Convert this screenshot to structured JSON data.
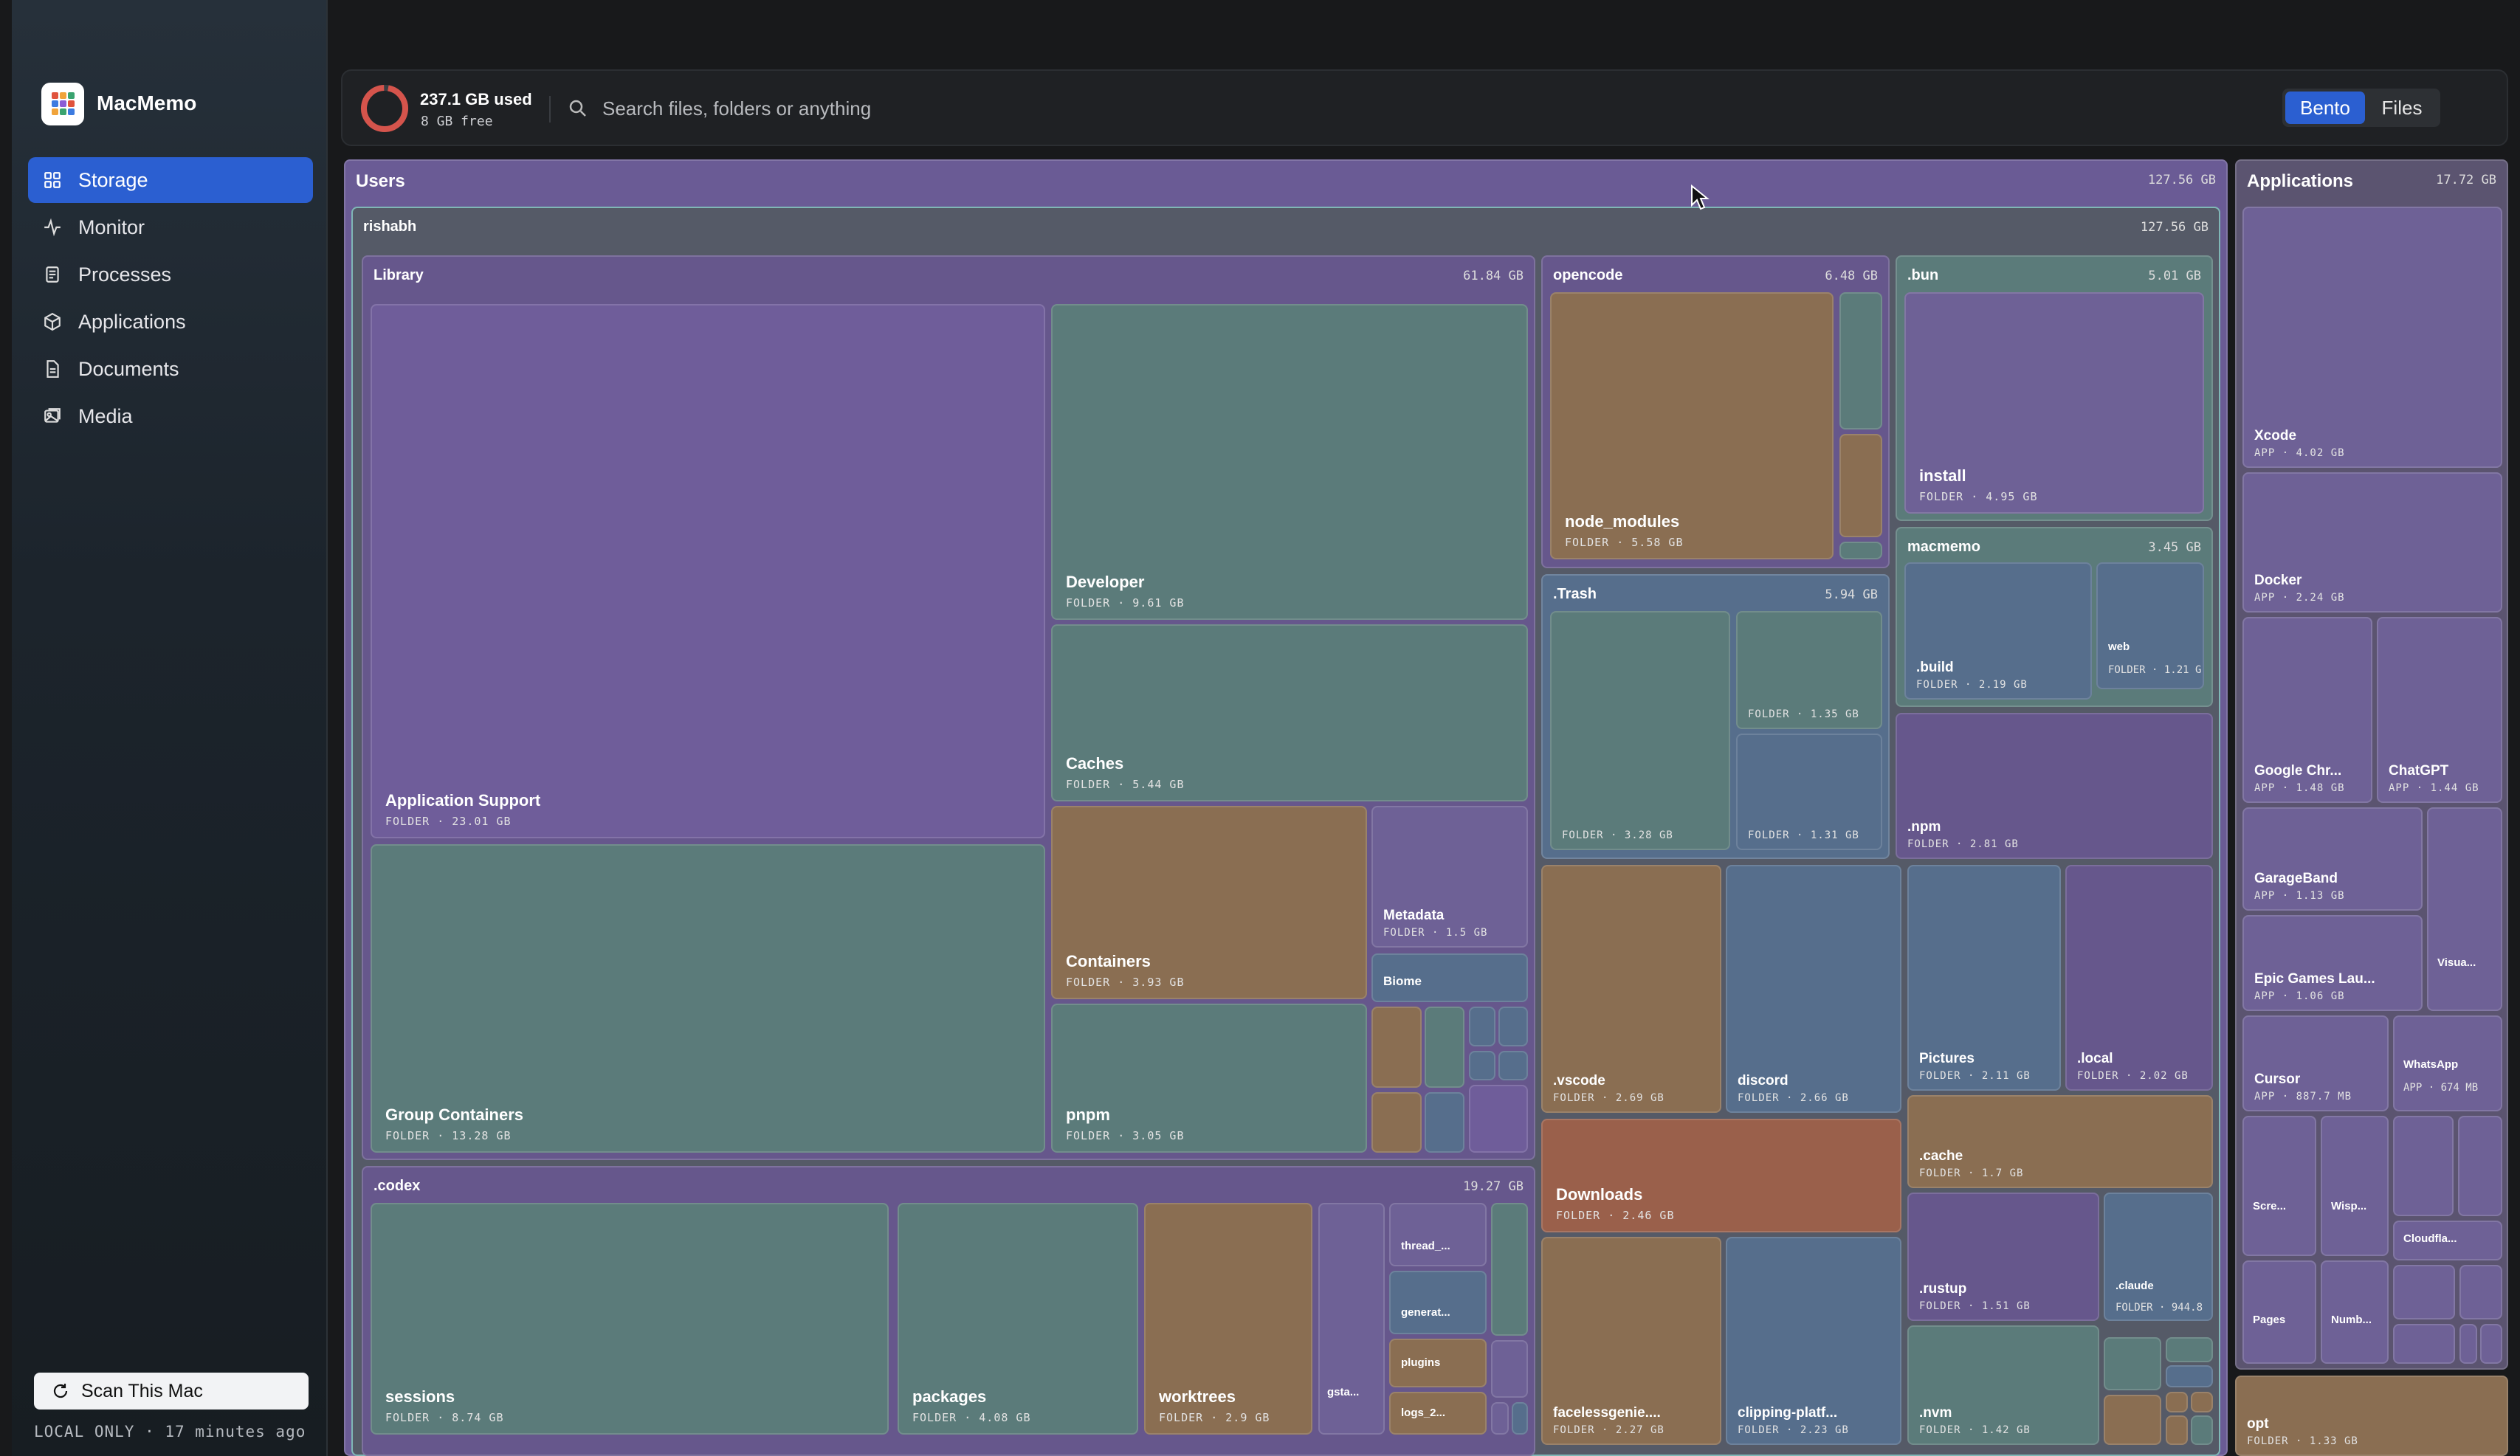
{
  "app": {
    "name": "MacMemo"
  },
  "sidebar": {
    "items": [
      {
        "label": "Storage",
        "icon": "grid-icon",
        "active": true
      },
      {
        "label": "Monitor",
        "icon": "pulse-icon"
      },
      {
        "label": "Processes",
        "icon": "document-icon"
      },
      {
        "label": "Applications",
        "icon": "cube-icon"
      },
      {
        "label": "Documents",
        "icon": "file-icon"
      },
      {
        "label": "Media",
        "icon": "photo-icon"
      }
    ],
    "scan_label": "Scan This Mac",
    "footer": "LOCAL ONLY · 17 minutes ago"
  },
  "topbar": {
    "used": "237.1 GB used",
    "free": "8 GB free",
    "search_placeholder": "Search files, folders or anything",
    "view_bento": "Bento",
    "view_files": "Files"
  },
  "treemap": {
    "users": {
      "name": "Users",
      "size": "127.56 GB"
    },
    "rishabh": {
      "name": "rishabh",
      "size": "127.56 GB"
    },
    "library": {
      "name": "Library",
      "size": "61.84 GB",
      "app_support": {
        "name": "Application Support",
        "meta": "FOLDER · 23.01 GB"
      },
      "developer": {
        "name": "Developer",
        "meta": "FOLDER · 9.61 GB"
      },
      "caches": {
        "name": "Caches",
        "meta": "FOLDER · 5.44 GB"
      },
      "group_containers": {
        "name": "Group Containers",
        "meta": "FOLDER · 13.28 GB"
      },
      "containers": {
        "name": "Containers",
        "meta": "FOLDER · 3.93 GB"
      },
      "metadata": {
        "name": "Metadata",
        "meta": "FOLDER · 1.5 GB"
      },
      "biome": {
        "name": "Biome"
      },
      "pnpm": {
        "name": "pnpm",
        "meta": "FOLDER · 3.05 GB"
      }
    },
    "codex": {
      "name": ".codex",
      "size": "19.27 GB",
      "sessions": {
        "name": "sessions",
        "meta": "FOLDER · 8.74 GB"
      },
      "packages": {
        "name": "packages",
        "meta": "FOLDER · 4.08 GB"
      },
      "worktrees": {
        "name": "worktrees",
        "meta": "FOLDER · 2.9 GB"
      },
      "gsta": {
        "name": "gsta..."
      },
      "thread": {
        "name": "thread_..."
      },
      "generat": {
        "name": "generat..."
      },
      "plugins": {
        "name": "plugins"
      },
      "logs": {
        "name": "logs_2..."
      }
    },
    "opencode": {
      "name": "opencode",
      "size": "6.48 GB",
      "node_modules": {
        "name": "node_modules",
        "meta": "FOLDER · 5.58 GB"
      }
    },
    "bun": {
      "name": ".bun",
      "size": "5.01 GB",
      "install": {
        "name": "install",
        "meta": "FOLDER · 4.95 GB"
      }
    },
    "macmemo": {
      "name": "macmemo",
      "size": "3.45 GB",
      "build": {
        "name": ".build",
        "meta": "FOLDER · 2.19 GB"
      },
      "web": {
        "name": "web",
        "meta": "FOLDER · 1.21 G"
      }
    },
    "trash": {
      "name": ".Trash",
      "size": "5.94 GB",
      "a": {
        "meta": "FOLDER · 3.28 GB"
      },
      "b": {
        "meta": "FOLDER · 1.35 GB"
      },
      "c": {
        "meta": "FOLDER · 1.31 GB"
      }
    },
    "npm": {
      "name": ".npm",
      "meta": "FOLDER · 2.81 GB"
    },
    "vscode": {
      "name": ".vscode",
      "meta": "FOLDER · 2.69 GB"
    },
    "discord": {
      "name": "discord",
      "meta": "FOLDER · 2.66 GB"
    },
    "pictures": {
      "name": "Pictures",
      "meta": "FOLDER · 2.11 GB"
    },
    "local": {
      "name": ".local",
      "meta": "FOLDER · 2.02 GB"
    },
    "cache": {
      "name": ".cache",
      "meta": "FOLDER · 1.7 GB"
    },
    "downloads": {
      "name": "Downloads",
      "meta": "FOLDER · 2.46 GB"
    },
    "rustup": {
      "name": ".rustup",
      "meta": "FOLDER · 1.51 GB"
    },
    "claude": {
      "name": ".claude",
      "meta": "FOLDER · 944.8"
    },
    "faceless": {
      "name": "facelessgenie....",
      "meta": "FOLDER · 2.27 GB"
    },
    "clipping": {
      "name": "clipping-platf...",
      "meta": "FOLDER · 2.23 GB"
    },
    "nvm": {
      "name": ".nvm",
      "meta": "FOLDER · 1.42 GB"
    },
    "applications": {
      "name": "Applications",
      "size": "17.72 GB",
      "xcode": {
        "name": "Xcode",
        "meta": "APP · 4.02 GB"
      },
      "docker": {
        "name": "Docker",
        "meta": "APP · 2.24 GB"
      },
      "chrome": {
        "name": "Google Chr...",
        "meta": "APP · 1.48 GB"
      },
      "chatgpt": {
        "name": "ChatGPT",
        "meta": "APP · 1.44 GB"
      },
      "garageband": {
        "name": "GarageBand",
        "meta": "APP · 1.13 GB"
      },
      "epic": {
        "name": "Epic Games Lau...",
        "meta": "APP · 1.06 GB"
      },
      "visua": {
        "name": "Visua..."
      },
      "cursor": {
        "name": "Cursor",
        "meta": "APP · 887.7 MB"
      },
      "whatsapp": {
        "name": "WhatsApp",
        "meta": "APP · 674 MB"
      },
      "scre": {
        "name": "Scre..."
      },
      "wisp": {
        "name": "Wisp..."
      },
      "cloudfla": {
        "name": "Cloudfla..."
      },
      "pages": {
        "name": "Pages"
      },
      "numb": {
        "name": "Numb..."
      }
    },
    "opt": {
      "name": "opt",
      "meta": "FOLDER · 1.33 GB"
    }
  }
}
